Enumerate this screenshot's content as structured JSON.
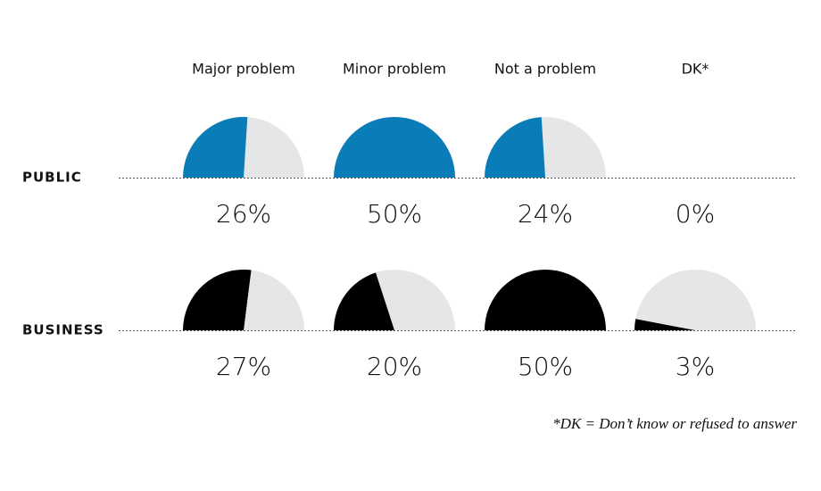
{
  "chart_data": {
    "type": "semicircle",
    "categories": [
      "Major problem",
      "Minor problem",
      "Not a problem",
      "DK*"
    ],
    "series": [
      {
        "name": "PUBLIC",
        "color": "#0a7db8",
        "values": [
          26,
          50,
          24,
          0
        ],
        "value_labels": [
          "26%",
          "50%",
          "24%",
          "0%"
        ]
      },
      {
        "name": "BUSINESS",
        "color": "#000000",
        "values": [
          27,
          20,
          50,
          3
        ],
        "value_labels": [
          "27%",
          "20%",
          "50%",
          "3%"
        ]
      }
    ],
    "ylim": [
      0,
      50
    ],
    "note": "*DK = Don’t know or refused to answer"
  }
}
